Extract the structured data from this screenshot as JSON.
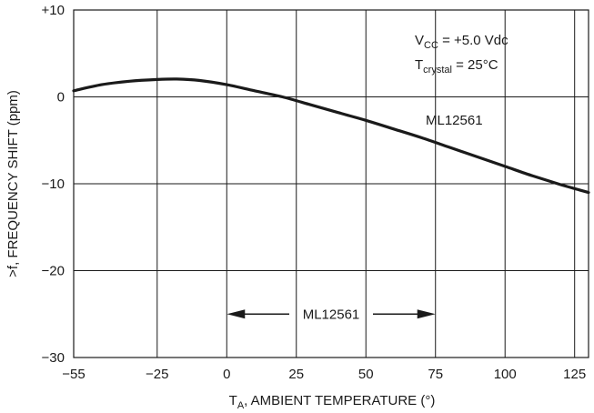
{
  "chart_data": {
    "type": "line",
    "xlabel": {
      "main": "T",
      "sub": "A",
      "rest": ", AMBIENT TEMPERATURE (°)"
    },
    "ylabel": ">f, FREQUENCY SHIFT (ppm)",
    "xlim": [
      -55,
      130
    ],
    "ylim": [
      -30,
      10
    ],
    "x_ticks": [
      -55,
      -25,
      0,
      25,
      50,
      75,
      100,
      125
    ],
    "x_tick_labels": [
      "−55",
      "−25",
      "0",
      "25",
      "50",
      "75",
      "100",
      "125"
    ],
    "y_ticks": [
      10,
      0,
      -10,
      -20,
      -30
    ],
    "y_tick_labels": [
      "+10",
      "0",
      "−10",
      "−20",
      "−30"
    ],
    "grid": true,
    "series": [
      {
        "name": "ML12561",
        "x": [
          -55,
          -45,
          -35,
          -25,
          -18,
          -10,
          0,
          10,
          20,
          30,
          40,
          50,
          60,
          70,
          80,
          90,
          100,
          110,
          120,
          130
        ],
        "y": [
          0.7,
          1.4,
          1.8,
          2.0,
          2.05,
          1.9,
          1.4,
          0.7,
          0.0,
          -0.9,
          -1.8,
          -2.7,
          -3.7,
          -4.7,
          -5.8,
          -6.9,
          -8.0,
          -9.1,
          -10.1,
          -11.0
        ]
      }
    ],
    "annotations": {
      "vcc": {
        "main": "V",
        "sub": "CC",
        "rest": " = +5.0 Vdc"
      },
      "tcrystal": {
        "main": "T",
        "sub": "crystal",
        "rest": " = 25°C"
      },
      "curve_label": "ML12561",
      "range_label": "ML12561",
      "range": [
        0,
        75
      ],
      "range_y": -25
    }
  }
}
